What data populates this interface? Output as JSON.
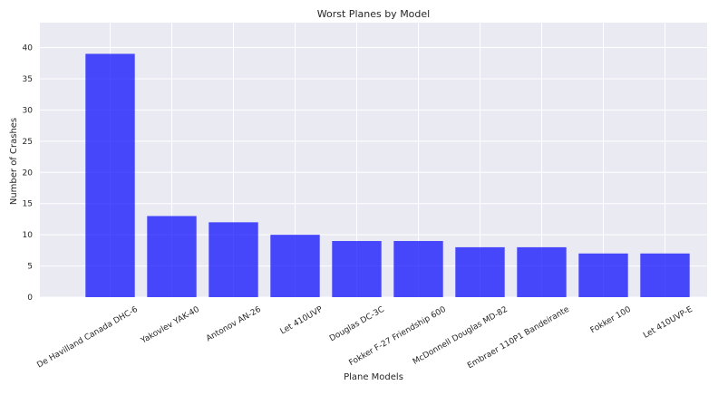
{
  "chart_data": {
    "type": "bar",
    "title": "Worst Planes by Model",
    "xlabel": "Plane Models",
    "ylabel": "Number of Crashes",
    "categories": [
      "De Havilland Canada DHC-6",
      "Yakovlev YAK-40",
      "Antonov AN-26",
      "Let 410UVP",
      "Douglas DC-3C",
      "Fokker F-27 Friendship 600",
      "McDonnell Douglas MD-82",
      "Embraer 110P1 Bandeirante",
      "Fokker 100",
      "Let 410UVP-E"
    ],
    "values": [
      39,
      13,
      12,
      10,
      9,
      9,
      8,
      8,
      7,
      7
    ],
    "ylim": [
      0,
      44
    ],
    "yticks": [
      0,
      5,
      10,
      15,
      20,
      25,
      30,
      35,
      40
    ],
    "grid": true,
    "bar_color": "#0000ff",
    "bar_opacity": 0.7,
    "plot_background": "#eaeaf2",
    "grid_color": "#ffffff"
  }
}
